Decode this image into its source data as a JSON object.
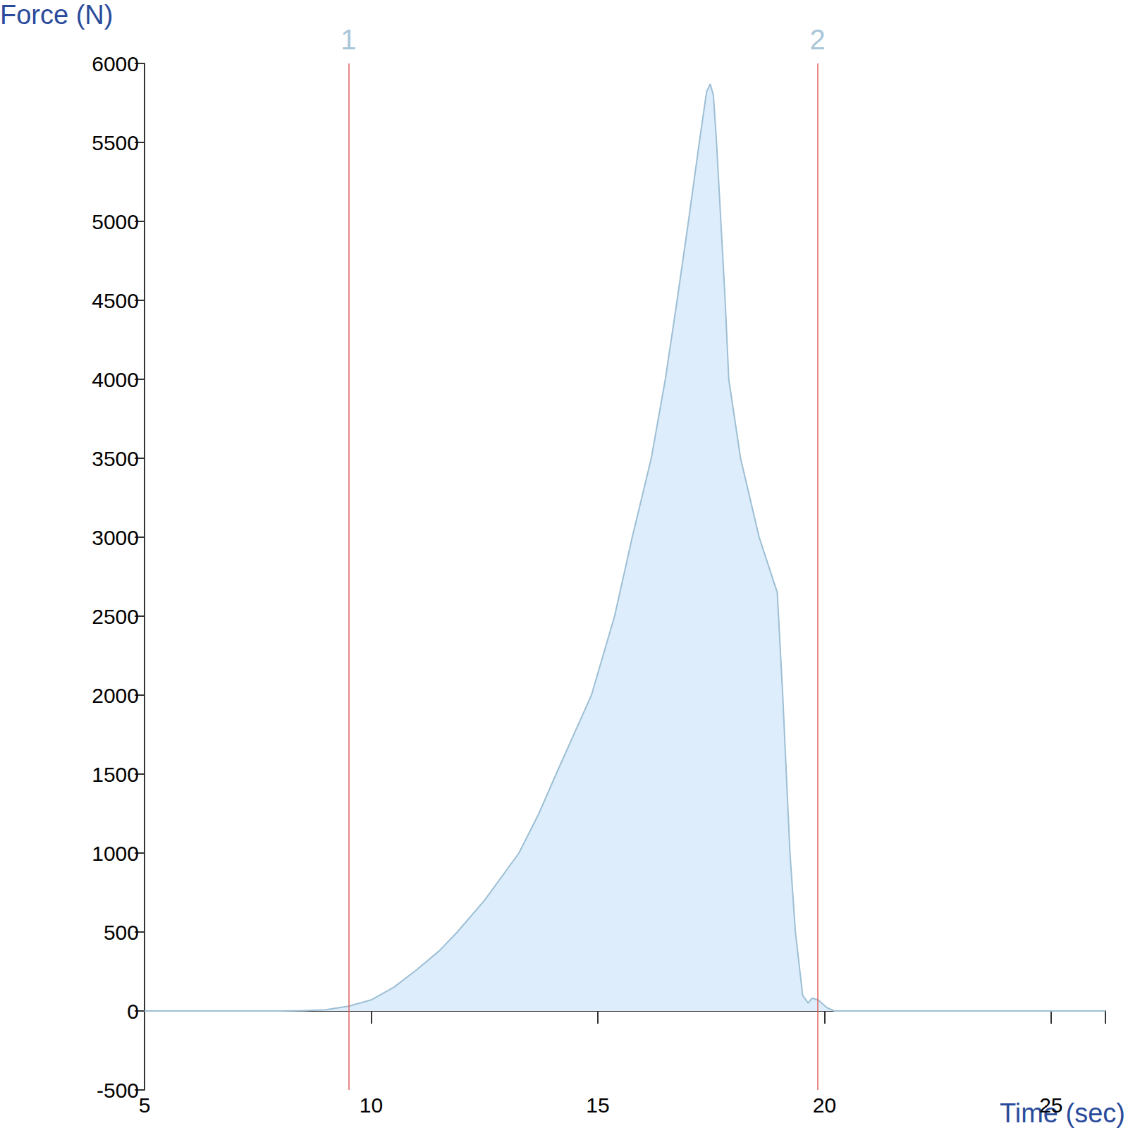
{
  "chart_data": {
    "type": "area",
    "x_label": "Time (sec)",
    "y_label": "Force (N)",
    "x": [
      5,
      8.0,
      8.5,
      9.0,
      9.5,
      10.0,
      10.5,
      11.0,
      11.5,
      11.9,
      12.5,
      13.26,
      13.7,
      14.08,
      14.86,
      15.37,
      15.76,
      16.18,
      16.49,
      16.75,
      17.0,
      17.24,
      17.4,
      17.48,
      17.55,
      17.62,
      17.81,
      17.89,
      18.15,
      18.56,
      18.96,
      19.08,
      19.24,
      19.36,
      19.52,
      19.64,
      19.72,
      19.86,
      20.06,
      20.22,
      26.2
    ],
    "values": [
      0,
      0,
      2,
      8,
      30,
      70,
      150,
      260,
      380,
      500,
      700,
      1000,
      1250,
      1500,
      2000,
      2500,
      3000,
      3500,
      4000,
      4500,
      5000,
      5500,
      5820,
      5870,
      5800,
      5500,
      4500,
      4000,
      3500,
      3000,
      2650,
      2000,
      1000,
      500,
      100,
      50,
      80,
      70,
      20,
      0,
      0
    ],
    "color": "#9dbfd4",
    "xlim": [
      5,
      26.2
    ],
    "xticks": [
      5,
      10,
      15,
      20,
      25
    ],
    "ylim": [
      -500,
      6000
    ],
    "yticks": [
      -500,
      0,
      500,
      1000,
      1500,
      2000,
      2500,
      3000,
      3500,
      4000,
      4500,
      5000,
      5500,
      6000
    ],
    "annotations": [
      {
        "x": 9.5,
        "label": "1"
      },
      {
        "x": 19.85,
        "label": "2"
      }
    ],
    "grid": false
  }
}
